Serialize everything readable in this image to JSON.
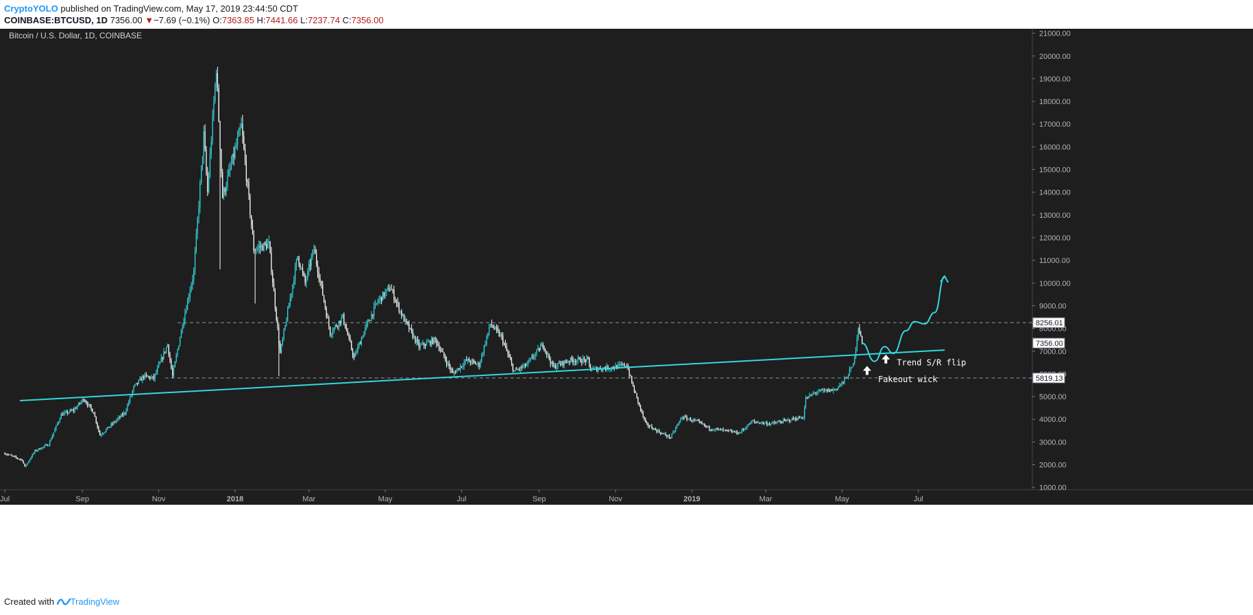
{
  "header": {
    "author": "CryptoYOLO",
    "published_text": "published on TradingView.com, May 17, 2019 23:44:50 CDT"
  },
  "ohlc": {
    "symbol": "COINBASE:BTCUSD, 1D",
    "last": "7356.00",
    "change_arrow": "▼",
    "change": "−7.69 (−0.1%)",
    "o_label": "O:",
    "o_value": "7363.85",
    "h_label": "H:",
    "h_value": "7441.66",
    "l_label": "L:",
    "l_value": "7237.74",
    "c_label": "C:",
    "c_value": "7356.00"
  },
  "footer": {
    "prefix": "Created with",
    "brand": "TradingView"
  },
  "colors": {
    "background": "#1e1e1e",
    "up": "#33d9e0",
    "down": "#ffffff",
    "trendline": "#33d9e0",
    "grid_text": "#b2b5be",
    "dashed": "#9598a1",
    "price_tag_bg": "#ffffff",
    "price_tag_text": "#131722"
  },
  "chart_data": {
    "type": "candlestick",
    "title": "Bitcoin / U.S. Dollar, 1D, COINBASE",
    "xlabel": "",
    "ylabel": "",
    "ylim": [
      900,
      21200
    ],
    "y_ticks": [
      1000,
      2000,
      3000,
      4000,
      5000,
      6000,
      7000,
      8000,
      9000,
      10000,
      11000,
      12000,
      13000,
      14000,
      15000,
      16000,
      17000,
      18000,
      19000,
      20000,
      21000
    ],
    "y_tick_labels": [
      "1000.00",
      "2000.00",
      "3000.00",
      "4000.00",
      "5000.00",
      "6000.00",
      "7000.00",
      "8000.00",
      "9000.00",
      "10000.00",
      "11000.00",
      "12000.00",
      "13000.00",
      "14000.00",
      "15000.00",
      "16000.00",
      "17000.00",
      "18000.00",
      "19000.00",
      "20000.00",
      "21000.00"
    ],
    "x_range": [
      "2017-07-01",
      "2019-09-30"
    ],
    "x_ticks": [
      {
        "date": "2017-07-01",
        "label": "Jul",
        "bold": false
      },
      {
        "date": "2017-09-01",
        "label": "Sep",
        "bold": false
      },
      {
        "date": "2017-11-01",
        "label": "Nov",
        "bold": false
      },
      {
        "date": "2018-01-01",
        "label": "2018",
        "bold": true
      },
      {
        "date": "2018-03-01",
        "label": "Mar",
        "bold": false
      },
      {
        "date": "2018-05-01",
        "label": "May",
        "bold": false
      },
      {
        "date": "2018-07-01",
        "label": "Jul",
        "bold": false
      },
      {
        "date": "2018-09-01",
        "label": "Sep",
        "bold": false
      },
      {
        "date": "2018-11-01",
        "label": "Nov",
        "bold": false
      },
      {
        "date": "2019-01-01",
        "label": "2019",
        "bold": true
      },
      {
        "date": "2019-03-01",
        "label": "Mar",
        "bold": false
      },
      {
        "date": "2019-05-01",
        "label": "May",
        "bold": false
      },
      {
        "date": "2019-07-01",
        "label": "Jul",
        "bold": false
      }
    ],
    "price_path": [
      [
        "2017-07-01",
        2500
      ],
      [
        "2017-07-15",
        2200
      ],
      [
        "2017-07-17",
        1900
      ],
      [
        "2017-07-25",
        2600
      ],
      [
        "2017-08-05",
        2900
      ],
      [
        "2017-08-15",
        4200
      ],
      [
        "2017-08-25",
        4400
      ],
      [
        "2017-09-02",
        4900
      ],
      [
        "2017-09-10",
        4300
      ],
      [
        "2017-09-15",
        3300
      ],
      [
        "2017-09-25",
        3800
      ],
      [
        "2017-10-05",
        4300
      ],
      [
        "2017-10-12",
        5400
      ],
      [
        "2017-10-20",
        5900
      ],
      [
        "2017-10-28",
        5800
      ],
      [
        "2017-11-08",
        7300
      ],
      [
        "2017-11-12",
        5900
      ],
      [
        "2017-11-20",
        8200
      ],
      [
        "2017-11-29",
        10500
      ],
      [
        "2017-12-07",
        16500
      ],
      [
        "2017-12-10",
        14000
      ],
      [
        "2017-12-17",
        19500
      ],
      [
        "2017-12-22",
        13800
      ],
      [
        "2017-12-28",
        15000
      ],
      [
        "2018-01-06",
        16900
      ],
      [
        "2018-01-16",
        11500
      ],
      [
        "2018-01-28",
        11700
      ],
      [
        "2018-02-06",
        6900
      ],
      [
        "2018-02-10",
        8100
      ],
      [
        "2018-02-20",
        11200
      ],
      [
        "2018-02-26",
        10000
      ],
      [
        "2018-03-05",
        11500
      ],
      [
        "2018-03-18",
        7800
      ],
      [
        "2018-03-28",
        8500
      ],
      [
        "2018-04-06",
        6700
      ],
      [
        "2018-04-15",
        8000
      ],
      [
        "2018-04-25",
        9200
      ],
      [
        "2018-05-05",
        9800
      ],
      [
        "2018-05-15",
        8500
      ],
      [
        "2018-05-28",
        7200
      ],
      [
        "2018-06-10",
        7500
      ],
      [
        "2018-06-24",
        6000
      ],
      [
        "2018-07-05",
        6600
      ],
      [
        "2018-07-15",
        6400
      ],
      [
        "2018-07-24",
        8200
      ],
      [
        "2018-08-02",
        7600
      ],
      [
        "2018-08-12",
        6100
      ],
      [
        "2018-08-22",
        6400
      ],
      [
        "2018-09-04",
        7300
      ],
      [
        "2018-09-12",
        6300
      ],
      [
        "2018-09-25",
        6600
      ],
      [
        "2018-10-10",
        6600
      ],
      [
        "2018-10-12",
        6200
      ],
      [
        "2018-10-31",
        6300
      ],
      [
        "2018-11-10",
        6400
      ],
      [
        "2018-11-14",
        5600
      ],
      [
        "2018-11-20",
        4600
      ],
      [
        "2018-11-25",
        3800
      ],
      [
        "2018-12-07",
        3400
      ],
      [
        "2018-12-15",
        3200
      ],
      [
        "2018-12-24",
        4100
      ],
      [
        "2019-01-05",
        3900
      ],
      [
        "2019-01-15",
        3600
      ],
      [
        "2019-02-08",
        3400
      ],
      [
        "2019-02-18",
        3900
      ],
      [
        "2019-03-05",
        3800
      ],
      [
        "2019-03-31",
        4100
      ],
      [
        "2019-04-02",
        4900
      ],
      [
        "2019-04-10",
        5200
      ],
      [
        "2019-04-25",
        5300
      ],
      [
        "2019-05-03",
        5700
      ],
      [
        "2019-05-10",
        6400
      ],
      [
        "2019-05-14",
        8100
      ],
      [
        "2019-05-17",
        7356
      ]
    ],
    "spikes": [
      {
        "date": "2017-12-20",
        "low": 10600
      },
      {
        "date": "2018-02-05",
        "low": 5900
      },
      {
        "date": "2018-01-17",
        "low": 9100
      }
    ],
    "trendline": {
      "from": [
        "2017-07-13",
        4820
      ],
      "to": [
        "2019-07-22",
        7050
      ]
    },
    "projection": [
      [
        "2019-05-17",
        7356
      ],
      [
        "2019-05-27",
        6550
      ],
      [
        "2019-06-04",
        7200
      ],
      [
        "2019-06-11",
        6900
      ],
      [
        "2019-06-21",
        7900
      ],
      [
        "2019-06-28",
        8300
      ],
      [
        "2019-07-06",
        8200
      ],
      [
        "2019-07-14",
        8700
      ],
      [
        "2019-07-22",
        10300
      ]
    ],
    "horizontal_levels": [
      {
        "value": 8256.01,
        "label": "8256.01",
        "from": "2017-11-16"
      },
      {
        "value": 5819.13,
        "label": "5819.13",
        "from": "2017-11-06"
      }
    ],
    "last_price": {
      "value": 7356.0,
      "label": "7356.00"
    },
    "annotations": [
      {
        "text": "Trend S/R flip",
        "date": "2019-06-05",
        "price": 6850,
        "label_price": 6500
      },
      {
        "text": "Fakeout wick",
        "date": "2019-05-21",
        "price": 6350,
        "label_price": 5750
      }
    ]
  }
}
